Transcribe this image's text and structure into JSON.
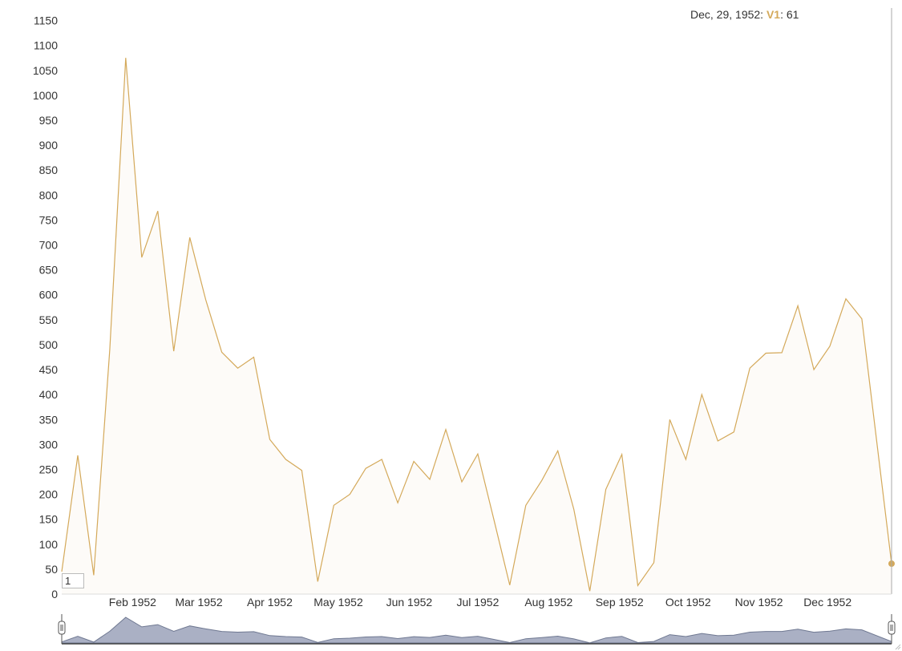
{
  "tooltip": {
    "date": "Dec, 29, 1952:",
    "series": "V1",
    "value": "61"
  },
  "roll_period": "1",
  "colors": {
    "line": "#d4a95a",
    "fill": "#fdfbf8",
    "range_fill": "#aab0c4",
    "range_line": "#6f7891"
  },
  "chart_data": {
    "type": "area",
    "ylim": [
      0,
      1175
    ],
    "xlim": [
      "1952-01-01",
      "1952-12-29"
    ],
    "yticks": [
      0,
      50,
      100,
      150,
      200,
      250,
      300,
      350,
      400,
      450,
      500,
      550,
      600,
      650,
      700,
      750,
      800,
      850,
      900,
      950,
      1000,
      1050,
      1100,
      1150
    ],
    "xticks": [
      {
        "date": "1952-02-01",
        "label": "Feb 1952"
      },
      {
        "date": "1952-03-01",
        "label": "Mar 1952"
      },
      {
        "date": "1952-04-01",
        "label": "Apr 1952"
      },
      {
        "date": "1952-05-01",
        "label": "May 1952"
      },
      {
        "date": "1952-06-01",
        "label": "Jun 1952"
      },
      {
        "date": "1952-07-01",
        "label": "Jul 1952"
      },
      {
        "date": "1952-08-01",
        "label": "Aug 1952"
      },
      {
        "date": "1952-09-01",
        "label": "Sep 1952"
      },
      {
        "date": "1952-10-01",
        "label": "Oct 1952"
      },
      {
        "date": "1952-11-01",
        "label": "Nov 1952"
      },
      {
        "date": "1952-12-01",
        "label": "Dec 1952"
      }
    ],
    "series": [
      {
        "name": "V1",
        "points": [
          [
            "1952-01-01",
            45
          ],
          [
            "1952-01-08",
            278
          ],
          [
            "1952-01-15",
            38
          ],
          [
            "1952-01-22",
            490
          ],
          [
            "1952-01-29",
            1075
          ],
          [
            "1952-02-05",
            675
          ],
          [
            "1952-02-12",
            768
          ],
          [
            "1952-02-19",
            487
          ],
          [
            "1952-02-26",
            715
          ],
          [
            "1952-03-04",
            590
          ],
          [
            "1952-03-11",
            485
          ],
          [
            "1952-03-18",
            453
          ],
          [
            "1952-03-25",
            475
          ],
          [
            "1952-04-01",
            310
          ],
          [
            "1952-04-08",
            270
          ],
          [
            "1952-04-15",
            248
          ],
          [
            "1952-04-22",
            25
          ],
          [
            "1952-04-29",
            178
          ],
          [
            "1952-05-06",
            200
          ],
          [
            "1952-05-13",
            252
          ],
          [
            "1952-05-20",
            270
          ],
          [
            "1952-05-27",
            183
          ],
          [
            "1952-06-03",
            266
          ],
          [
            "1952-06-10",
            230
          ],
          [
            "1952-06-17",
            330
          ],
          [
            "1952-06-24",
            225
          ],
          [
            "1952-07-01",
            281
          ],
          [
            "1952-07-08",
            150
          ],
          [
            "1952-07-15",
            18
          ],
          [
            "1952-07-22",
            178
          ],
          [
            "1952-07-29",
            228
          ],
          [
            "1952-08-05",
            287
          ],
          [
            "1952-08-12",
            170
          ],
          [
            "1952-08-19",
            6
          ],
          [
            "1952-08-26",
            210
          ],
          [
            "1952-09-02",
            280
          ],
          [
            "1952-09-09",
            17
          ],
          [
            "1952-09-16",
            63
          ],
          [
            "1952-09-23",
            350
          ],
          [
            "1952-09-30",
            270
          ],
          [
            "1952-10-07",
            400
          ],
          [
            "1952-10-14",
            307
          ],
          [
            "1952-10-21",
            325
          ],
          [
            "1952-10-28",
            453
          ],
          [
            "1952-11-04",
            483
          ],
          [
            "1952-11-11",
            484
          ],
          [
            "1952-11-18",
            578
          ],
          [
            "1952-11-25",
            450
          ],
          [
            "1952-12-02",
            497
          ],
          [
            "1952-12-09",
            592
          ],
          [
            "1952-12-16",
            552
          ],
          [
            "1952-12-29",
            61
          ]
        ]
      }
    ]
  }
}
